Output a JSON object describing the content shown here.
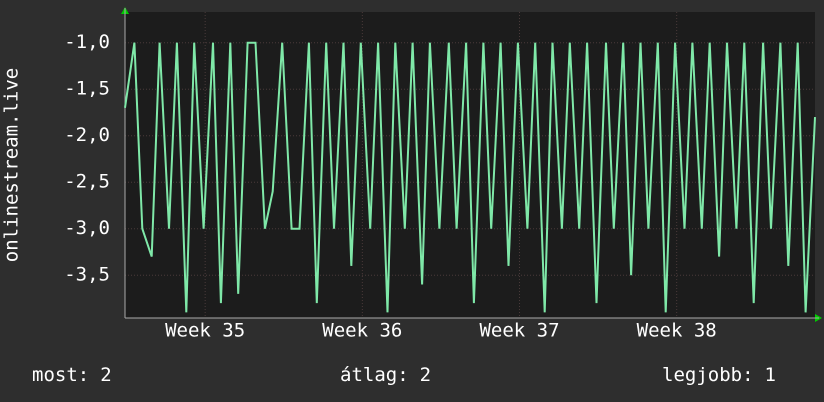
{
  "chart_data": {
    "type": "line",
    "y_label": "onlinestream.live",
    "x": [
      34.49,
      34.55,
      34.6,
      34.66,
      34.71,
      34.77,
      34.82,
      34.88,
      34.93,
      34.99,
      35.05,
      35.1,
      35.16,
      35.21,
      35.27,
      35.32,
      35.38,
      35.43,
      35.49,
      35.55,
      35.6,
      35.66,
      35.71,
      35.77,
      35.82,
      35.88,
      35.93,
      35.99,
      36.05,
      36.1,
      36.16,
      36.21,
      36.27,
      36.32,
      36.38,
      36.43,
      36.49,
      36.55,
      36.6,
      36.66,
      36.71,
      36.77,
      36.82,
      36.88,
      36.93,
      36.99,
      37.05,
      37.1,
      37.16,
      37.21,
      37.27,
      37.32,
      37.38,
      37.43,
      37.49,
      37.55,
      37.6,
      37.66,
      37.71,
      37.77,
      37.82,
      37.88,
      37.93,
      37.99,
      38.05,
      38.1,
      38.16,
      38.21,
      38.27,
      38.32,
      38.38,
      38.43,
      38.49,
      38.55,
      38.6,
      38.66,
      38.71,
      38.77,
      38.82,
      38.88
    ],
    "series": [
      {
        "name": "onlinestream.live",
        "color": "#7fe8a8",
        "values": [
          -1.7,
          -1.0,
          -3.0,
          -3.3,
          -1.0,
          -3.0,
          -1.0,
          -3.9,
          -1.0,
          -3.0,
          -1.0,
          -3.8,
          -1.0,
          -3.7,
          -1.0,
          -1.0,
          -3.0,
          -2.6,
          -1.0,
          -3.0,
          -3.0,
          -1.0,
          -3.8,
          -1.0,
          -3.0,
          -1.0,
          -3.4,
          -1.0,
          -3.0,
          -1.0,
          -3.9,
          -1.0,
          -3.0,
          -1.0,
          -3.6,
          -1.0,
          -3.0,
          -1.0,
          -3.0,
          -1.0,
          -3.8,
          -1.0,
          -3.0,
          -1.0,
          -3.4,
          -1.0,
          -3.0,
          -1.0,
          -3.9,
          -1.0,
          -3.0,
          -1.0,
          -3.0,
          -1.0,
          -3.8,
          -1.0,
          -3.0,
          -1.0,
          -3.5,
          -1.0,
          -3.0,
          -1.0,
          -3.9,
          -1.0,
          -3.0,
          -1.0,
          -3.0,
          -1.0,
          -3.3,
          -1.0,
          -3.0,
          -1.0,
          -3.8,
          -1.0,
          -3.0,
          -1.0,
          -3.4,
          -1.0,
          -3.9,
          -1.8
        ]
      }
    ],
    "xlim": [
      34.49,
      38.88
    ],
    "xticks": [
      {
        "value": 35,
        "label": "Week 35"
      },
      {
        "value": 36,
        "label": "Week 36"
      },
      {
        "value": 37,
        "label": "Week 37"
      },
      {
        "value": 38,
        "label": "Week 38"
      }
    ],
    "ylim": [
      -3.96,
      -0.67
    ],
    "yticks": [
      {
        "value": -1.0,
        "label": "-1,0"
      },
      {
        "value": -1.5,
        "label": "-1,5"
      },
      {
        "value": -2.0,
        "label": "-2,0"
      },
      {
        "value": -2.5,
        "label": "-2,5"
      },
      {
        "value": -3.0,
        "label": "-3,0"
      },
      {
        "value": -3.5,
        "label": "-3,5"
      }
    ],
    "grid": true,
    "stats": [
      {
        "label": "most:",
        "value": 2
      },
      {
        "label": "átlag:",
        "value": 2
      },
      {
        "label": "legjobb:",
        "value": 1
      }
    ]
  }
}
